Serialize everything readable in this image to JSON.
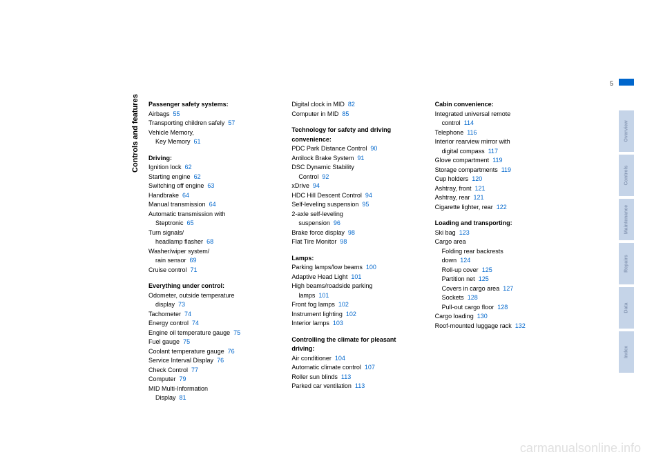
{
  "page_number": "5",
  "vertical_title": "Controls and features",
  "watermark": "carmanualsonline.info",
  "tabs": [
    "Overview",
    "Controls",
    "Maintenance",
    "Repairs",
    "Data",
    "Index"
  ],
  "col1": {
    "s1": {
      "title": "Passenger safety systems:",
      "e1": {
        "t": "Airbags",
        "p": "55"
      },
      "e2": {
        "t": "Transporting children safely",
        "p": "57"
      },
      "e3": {
        "t": "Vehicle Memory,"
      },
      "e3b": {
        "t": "Key Memory",
        "p": "61"
      }
    },
    "s2": {
      "title": "Driving:",
      "e1": {
        "t": "Ignition lock",
        "p": "62"
      },
      "e2": {
        "t": "Starting engine",
        "p": "62"
      },
      "e3": {
        "t": "Switching off engine",
        "p": "63"
      },
      "e4": {
        "t": "Handbrake",
        "p": "64"
      },
      "e5": {
        "t": "Manual transmission",
        "p": "64"
      },
      "e6": {
        "t": "Automatic transmission with"
      },
      "e6b": {
        "t": "Steptronic",
        "p": "65"
      },
      "e7": {
        "t": "Turn signals/"
      },
      "e7b": {
        "t": "headlamp flasher",
        "p": "68"
      },
      "e8": {
        "t": "Washer/wiper system/"
      },
      "e8b": {
        "t": "rain sensor",
        "p": "69"
      },
      "e9": {
        "t": "Cruise control",
        "p": "71"
      }
    },
    "s3": {
      "title": "Everything under control:",
      "e1": {
        "t": "Odometer, outside temperature"
      },
      "e1b": {
        "t": "display",
        "p": "73"
      },
      "e2": {
        "t": "Tachometer",
        "p": "74"
      },
      "e3": {
        "t": "Energy control",
        "p": "74"
      },
      "e4": {
        "t": "Engine oil temperature gauge",
        "p": "75"
      },
      "e5": {
        "t": "Fuel gauge",
        "p": "75"
      },
      "e6": {
        "t": "Coolant temperature gauge",
        "p": "76"
      },
      "e7": {
        "t": "Service Interval Display",
        "p": "76"
      },
      "e8": {
        "t": "Check Control",
        "p": "77"
      },
      "e9": {
        "t": "Computer",
        "p": "79"
      },
      "e10": {
        "t": "MID Multi-Information"
      },
      "e10b": {
        "t": "Display",
        "p": "81"
      }
    }
  },
  "col2": {
    "s0": {
      "e1": {
        "t": "Digital clock in MID",
        "p": "82"
      },
      "e2": {
        "t": "Computer in MID",
        "p": "85"
      }
    },
    "s1": {
      "title": "Technology for safety and driving convenience:",
      "e1": {
        "t": "PDC Park Distance Control",
        "p": "90"
      },
      "e2": {
        "t": "Antilock Brake System",
        "p": "91"
      },
      "e3": {
        "t": "DSC Dynamic Stability"
      },
      "e3b": {
        "t": "Control",
        "p": "92"
      },
      "e4": {
        "t": "xDrive",
        "p": "94"
      },
      "e5": {
        "t": "HDC Hill Descent Control",
        "p": "94"
      },
      "e6": {
        "t": "Self-leveling suspension",
        "p": "95"
      },
      "e7": {
        "t": "2-axle self-leveling"
      },
      "e7b": {
        "t": "suspension",
        "p": "96"
      },
      "e8": {
        "t": "Brake force display",
        "p": "98"
      },
      "e9": {
        "t": "Flat Tire Monitor",
        "p": "98"
      }
    },
    "s2": {
      "title": "Lamps:",
      "e1": {
        "t": "Parking lamps/low beams",
        "p": "100"
      },
      "e2": {
        "t": "Adaptive Head Light",
        "p": "101"
      },
      "e3": {
        "t": "High beams/roadside parking"
      },
      "e3b": {
        "t": "lamps",
        "p": "101"
      },
      "e4": {
        "t": "Front fog lamps",
        "p": "102"
      },
      "e5": {
        "t": "Instrument lighting",
        "p": "102"
      },
      "e6": {
        "t": "Interior lamps",
        "p": "103"
      }
    },
    "s3": {
      "title": "Controlling the climate for pleasant driving:",
      "e1": {
        "t": "Air conditioner",
        "p": "104"
      },
      "e2": {
        "t": "Automatic climate control",
        "p": "107"
      },
      "e3": {
        "t": "Roller sun blinds",
        "p": "113"
      },
      "e4": {
        "t": "Parked car ventilation",
        "p": "113"
      }
    }
  },
  "col3": {
    "s1": {
      "title": "Cabin convenience:",
      "e1": {
        "t": "Integrated universal remote"
      },
      "e1b": {
        "t": "control",
        "p": "114"
      },
      "e2": {
        "t": "Telephone",
        "p": "116"
      },
      "e3": {
        "t": "Interior rearview mirror with"
      },
      "e3b": {
        "t": "digital compass",
        "p": "117"
      },
      "e4": {
        "t": "Glove compartment",
        "p": "119"
      },
      "e5": {
        "t": "Storage compartments",
        "p": "119"
      },
      "e6": {
        "t": "Cup holders",
        "p": "120"
      },
      "e7": {
        "t": "Ashtray, front",
        "p": "121"
      },
      "e8": {
        "t": "Ashtray, rear",
        "p": "121"
      },
      "e9": {
        "t": "Cigarette lighter, rear",
        "p": "122"
      }
    },
    "s2": {
      "title": "Loading and transporting:",
      "e1": {
        "t": "Ski bag",
        "p": "123"
      },
      "e2": {
        "t": "Cargo area"
      },
      "e2b": {
        "t": "Folding rear backrests"
      },
      "e2c": {
        "t": "down",
        "p": "124"
      },
      "e2d": {
        "t": "Roll-up cover",
        "p": "125"
      },
      "e2e": {
        "t": "Partition net",
        "p": "125"
      },
      "e2f": {
        "t": "Covers in cargo area",
        "p": "127"
      },
      "e2g": {
        "t": "Sockets",
        "p": "128"
      },
      "e2h": {
        "t": "Pull-out cargo floor",
        "p": "128"
      },
      "e3": {
        "t": "Cargo loading",
        "p": "130"
      },
      "e4": {
        "t": "Roof-mounted luggage rack",
        "p": "132"
      }
    }
  }
}
